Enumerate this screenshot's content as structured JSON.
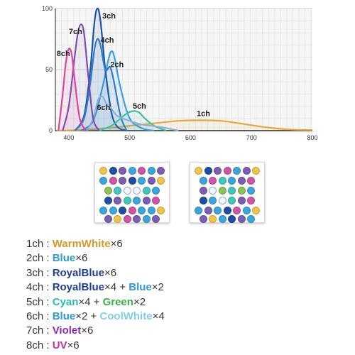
{
  "chart_data": {
    "type": "line",
    "x_ticks": [
      400,
      500,
      600,
      700,
      800
    ],
    "y_ticks": [
      0,
      50,
      100
    ],
    "xlim": [
      378,
      800
    ],
    "ylim": [
      0,
      100
    ],
    "grid": true,
    "series": [
      {
        "name": "1ch",
        "color": "#e8a838",
        "label_at": [
          610,
          12
        ],
        "x": [
          380,
          420,
          460,
          500,
          540,
          580,
          620,
          650,
          680,
          720,
          760,
          800
        ],
        "y": [
          0,
          0.5,
          2,
          4,
          6,
          8,
          8.5,
          8,
          6,
          3,
          1,
          0.5
        ]
      },
      {
        "name": "2ch",
        "color": "#3aa0de",
        "label_at": [
          468,
          52
        ],
        "x": [
          420,
          440,
          455,
          465,
          470,
          475,
          485,
          500,
          520,
          540
        ],
        "y": [
          0,
          8,
          35,
          58,
          65,
          60,
          35,
          10,
          2,
          0
        ]
      },
      {
        "name": "3ch",
        "color": "#1a52a8",
        "label_at": [
          455,
          92
        ],
        "x": [
          410,
          425,
          435,
          442,
          447,
          452,
          460,
          470,
          480,
          495
        ],
        "y": [
          0,
          12,
          48,
          88,
          100,
          90,
          50,
          15,
          3,
          0
        ]
      },
      {
        "name": "4ch",
        "color": "#2c7cc6",
        "label_at": [
          452,
          72
        ],
        "x": [
          410,
          425,
          435,
          442,
          447,
          452,
          460,
          468,
          475,
          485,
          495
        ],
        "y": [
          0,
          10,
          38,
          66,
          75,
          70,
          50,
          52,
          38,
          12,
          0
        ]
      },
      {
        "name": "5ch",
        "color": "#3fbfa0",
        "label_at": [
          505,
          18
        ],
        "x": [
          450,
          470,
          485,
          495,
          505,
          515,
          525,
          540,
          560
        ],
        "y": [
          0,
          4,
          10,
          14,
          16,
          15,
          10,
          4,
          0
        ]
      },
      {
        "name": "6ch",
        "color": "#8ab0d8",
        "label_at": [
          446,
          17
        ],
        "x": [
          430,
          440,
          448,
          455,
          462,
          470,
          480,
          500,
          520,
          550,
          580
        ],
        "y": [
          0,
          10,
          25,
          28,
          22,
          18,
          12,
          8,
          5,
          3,
          0
        ]
      },
      {
        "name": "7ch",
        "color": "#7a4fb0",
        "label_at": [
          400,
          79
        ],
        "x": [
          390,
          400,
          410,
          415,
          420,
          425,
          432,
          440,
          450
        ],
        "y": [
          0,
          20,
          62,
          80,
          87,
          80,
          45,
          10,
          0
        ]
      },
      {
        "name": "8ch",
        "color": "#d9479d",
        "label_at": [
          380,
          61
        ],
        "x": [
          383,
          390,
          395,
          400,
          405,
          410,
          418,
          428
        ],
        "y": [
          0,
          30,
          55,
          67,
          62,
          40,
          10,
          0
        ]
      }
    ]
  },
  "led_colors": {
    "warmwhite": "#efc54a",
    "blue": "#3aa6de",
    "royalblue": "#1f4ea6",
    "violet": "#7b5eb3",
    "uv": "#d254a6",
    "cyan": "#3fc9bc",
    "green": "#8cc24f",
    "coolwhite": "#f2f6fa"
  },
  "led_panels": {
    "left": [
      [
        "warmwhite",
        "royalblue",
        "violet",
        "blue",
        "uv",
        "blue",
        "violet"
      ],
      [
        "blue",
        "uv",
        "violet",
        "royalblue",
        "blue",
        "violet",
        "warmwhite"
      ],
      [
        "green",
        "cyan",
        "coolwhite",
        "coolwhite",
        "cyan",
        "blue"
      ],
      [
        "royalblue",
        "violet",
        "cyan",
        "blue",
        "violet",
        "uv"
      ],
      [
        "blue",
        "blue",
        "royalblue",
        "uv",
        "blue",
        "blue",
        "warmwhite"
      ],
      [
        "violet",
        "warmwhite",
        "uv",
        "violet",
        "blue",
        "violet"
      ]
    ],
    "right": [
      [
        "warmwhite",
        "royalblue",
        "violet",
        "uv",
        "blue",
        "violet",
        "warmwhite"
      ],
      [
        "blue",
        "uv",
        "cyan",
        "blue",
        "violet",
        "uv"
      ],
      [
        "violet",
        "coolwhite",
        "green",
        "cyan",
        "green",
        "blue"
      ],
      [
        "royalblue",
        "blue",
        "coolwhite",
        "cyan",
        "violet",
        "uv"
      ],
      [
        "blue",
        "violet",
        "blue",
        "royalblue",
        "uv",
        "blue",
        "warmwhite"
      ],
      [
        "violet",
        "warmwhite",
        "blue",
        "royalblue",
        "violet",
        "blue"
      ]
    ]
  },
  "legend": [
    {
      "prefix": "1ch : ",
      "parts": [
        {
          "name": "WarmWhite",
          "count": "×6",
          "color": "#d39a2a"
        }
      ]
    },
    {
      "prefix": "2ch : ",
      "parts": [
        {
          "name": "Blue",
          "count": "×6",
          "color": "#2f9ad6"
        }
      ]
    },
    {
      "prefix": "3ch : ",
      "parts": [
        {
          "name": "RoyalBlue",
          "count": "×6",
          "color": "#1f3f96"
        }
      ]
    },
    {
      "prefix": "4ch : ",
      "parts": [
        {
          "name": "RoyalBlue",
          "count": "×4 + ",
          "color": "#1f3f96"
        },
        {
          "name": "Blue",
          "count": "×2",
          "color": "#2f9ad6"
        }
      ]
    },
    {
      "prefix": "5ch : ",
      "parts": [
        {
          "name": "Cyan",
          "count": "×4 + ",
          "color": "#29b9c6"
        },
        {
          "name": "Green",
          "count": "×2",
          "color": "#3bb04a"
        }
      ]
    },
    {
      "prefix": "6ch : ",
      "parts": [
        {
          "name": "Blue",
          "count": "×2 + ",
          "color": "#2f9ad6"
        },
        {
          "name": "CoolWhite",
          "count": "×4",
          "color": "#7fd0e6"
        }
      ]
    },
    {
      "prefix": "7ch : ",
      "parts": [
        {
          "name": "Violet",
          "count": "×6",
          "color": "#8a2bb0"
        }
      ]
    },
    {
      "prefix": "8ch : ",
      "parts": [
        {
          "name": "UV",
          "count": "×6",
          "color": "#c231a7"
        }
      ]
    }
  ]
}
